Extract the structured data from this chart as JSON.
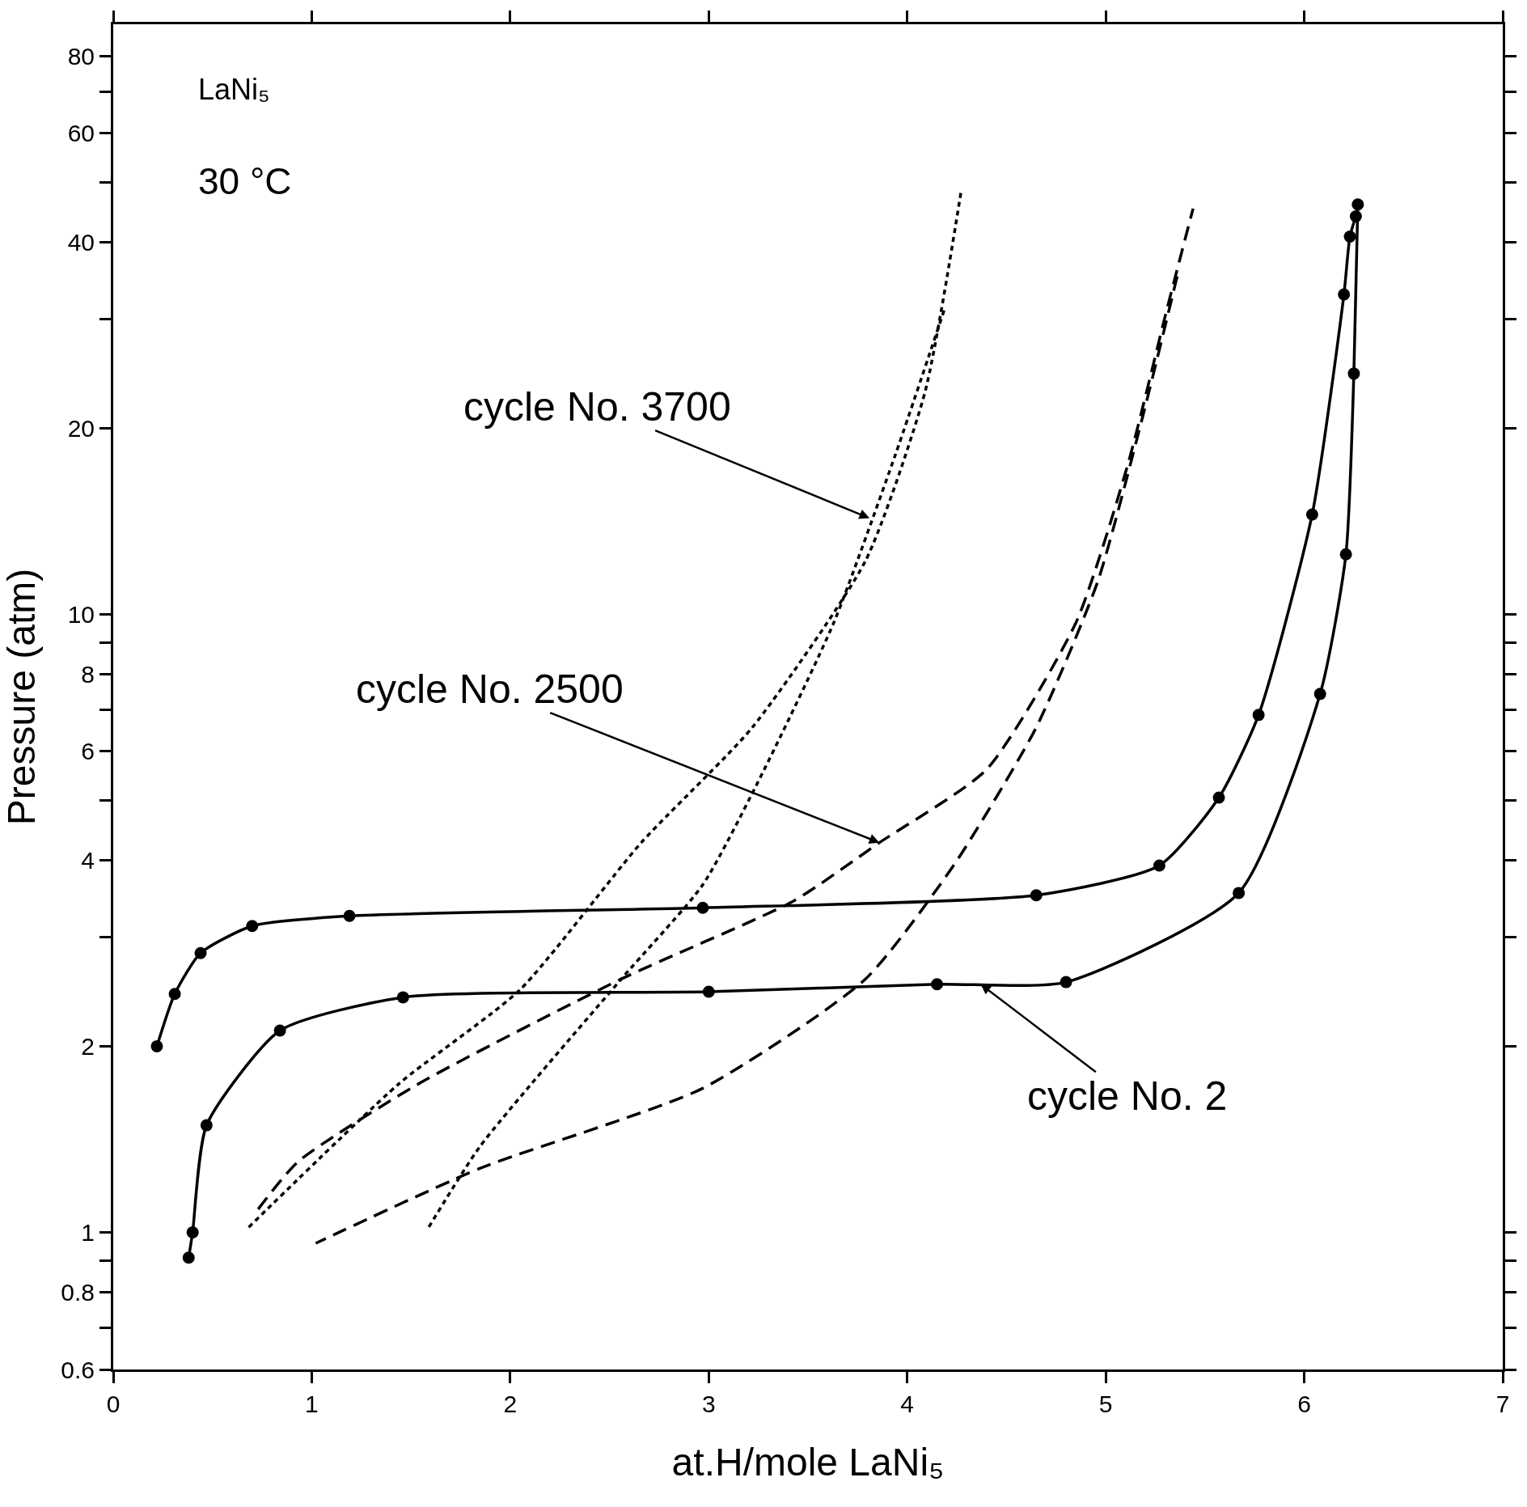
{
  "chart_data": {
    "type": "line",
    "xlabel": "at.H/mole LaNi₅",
    "ylabel": "Pressure (atm)",
    "xlim": [
      0,
      7
    ],
    "xticks": [
      0,
      1,
      2,
      3,
      4,
      5,
      6,
      7
    ],
    "ylim": [
      0.6,
      90
    ],
    "log": true,
    "yticks": [
      0.6,
      {
        "value": 0.7,
        "label": null
      },
      0.8,
      {
        "value": 0.9,
        "label": null
      },
      1,
      2,
      {
        "value": 3,
        "label": null
      },
      4,
      {
        "value": 5,
        "label": null
      },
      6,
      {
        "value": 7,
        "label": null
      },
      8,
      {
        "value": 9,
        "label": null
      },
      10,
      20,
      {
        "value": 30,
        "label": null
      },
      40,
      {
        "value": 50,
        "label": null
      },
      60,
      {
        "value": 70,
        "label": null
      },
      80
    ],
    "series": [
      {
        "color": "#000000",
        "marker": "circle",
        "line_style": "solid",
        "x": [
          0.22,
          0.31,
          0.44,
          0.7,
          1.19,
          2.97,
          4.65,
          5.27,
          5.57,
          5.77,
          6.04,
          6.2,
          6.23,
          6.26
        ],
        "values": [
          2.0,
          2.43,
          2.83,
          3.13,
          3.25,
          3.35,
          3.51,
          3.92,
          5.05,
          6.87,
          14.5,
          32.9,
          40.8,
          44
        ]
      },
      {
        "color": "#000000",
        "marker": "circle",
        "line_style": "solid",
        "x": [
          6.27,
          6.25,
          6.21,
          6.08,
          5.67,
          4.8,
          4.15,
          3.0,
          1.46,
          0.84,
          0.47,
          0.4,
          0.38
        ],
        "values": [
          46,
          24.5,
          12.5,
          7.43,
          3.54,
          2.54,
          2.52,
          2.45,
          2.4,
          2.12,
          1.49,
          1.0,
          0.91
        ]
      },
      {
        "color": "#000000",
        "marker": "none",
        "line_style": "dashed",
        "x": [
          0.73,
          0.93,
          1.54,
          2.56,
          3.43,
          3.86,
          4.4,
          4.85,
          5.11,
          5.31,
          5.44
        ],
        "values": [
          1.09,
          1.3,
          1.74,
          2.57,
          3.44,
          4.27,
          5.61,
          9.69,
          17.4,
          31.3,
          45.3
        ]
      },
      {
        "color": "#000000",
        "marker": "none",
        "line_style": "dashed",
        "x": [
          5.36,
          5.19,
          4.96,
          4.65,
          4.24,
          3.79,
          2.97,
          1.85,
          1.02
        ],
        "values": [
          35.2,
          21.1,
          11.3,
          6.56,
          3.95,
          2.57,
          1.71,
          1.27,
          0.96
        ]
      },
      {
        "color": "#000000",
        "marker": "none",
        "line_style": "dotted",
        "x": [
          4.27,
          4.09,
          3.79,
          3.22,
          2.66,
          2.05,
          1.44,
          0.67
        ],
        "values": [
          48,
          22.9,
          12.2,
          6.56,
          4.27,
          2.47,
          1.74,
          1.01
        ]
      },
      {
        "color": "#000000",
        "marker": "none",
        "line_style": "dotted",
        "x": [
          1.59,
          1.85,
          2.56,
          2.97,
          3.28,
          3.63,
          3.94,
          4.19
        ],
        "values": [
          1.02,
          1.38,
          2.57,
          3.65,
          5.61,
          9.69,
          18.1,
          31.3
        ]
      }
    ],
    "annotations": [
      "LaNi₅",
      "30 °C",
      {
        "text": "cycle No. 3700",
        "x": 3.81,
        "y": 14.3
      },
      {
        "text": "cycle No. 2500",
        "x": 3.86,
        "y": 4.27
      },
      {
        "text": "cycle No. 2",
        "x": 4.37,
        "y": 2.52
      }
    ]
  }
}
